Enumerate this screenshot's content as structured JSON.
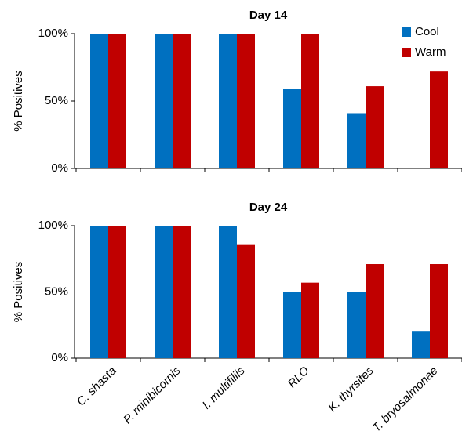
{
  "chart_data": [
    {
      "type": "bar",
      "title": "Day 14",
      "y_label": "% Positives",
      "categories": [
        null,
        null,
        null,
        null,
        null,
        null
      ],
      "series": [
        {
          "name": "Cool",
          "color": "#0070c0",
          "values": [
            100,
            100,
            100,
            59,
            41,
            0
          ]
        },
        {
          "name": "Warm",
          "color": "#c00000",
          "values": [
            100,
            100,
            100,
            100,
            61,
            72
          ]
        }
      ],
      "ylim": [
        0,
        100
      ],
      "yticks": [
        {
          "value": 0,
          "label": "0%"
        },
        {
          "value": 50,
          "label": "50%"
        },
        {
          "value": 100,
          "label": "100%"
        }
      ],
      "legend": "upper right"
    },
    {
      "type": "bar",
      "title": "Day 24",
      "y_label": "% Positives",
      "categories": [
        "C. shasta",
        "P. minibicornis",
        "I. multifiliis",
        "RLO",
        "K. thyrsites",
        "T. bryosalmonae"
      ],
      "series": [
        {
          "color": "#0070c0",
          "values": [
            100,
            100,
            100,
            50,
            50,
            20
          ]
        },
        {
          "color": "#c00000",
          "values": [
            100,
            100,
            86,
            57,
            71,
            71
          ]
        }
      ],
      "ylim": [
        0,
        100
      ],
      "yticks": [
        {
          "value": 0,
          "label": "0%"
        },
        {
          "value": 50,
          "label": "50%"
        },
        {
          "value": 100,
          "label": "100%"
        }
      ]
    }
  ]
}
